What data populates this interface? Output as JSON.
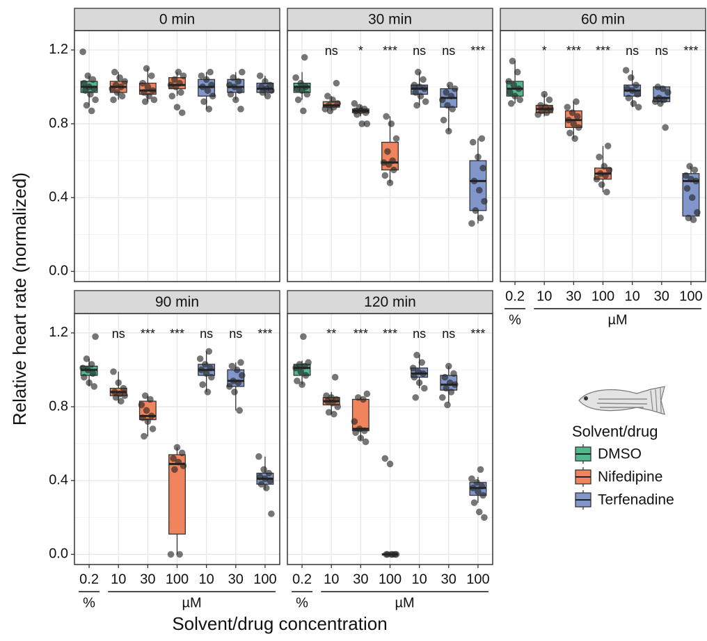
{
  "chart_data": {
    "type": "box",
    "y_label": "Relative heart rate (normalized)",
    "x_label": "Solvent/drug concentration",
    "legend_title": "Solvent/drug",
    "ylim": [
      -0.055,
      1.305
    ],
    "yticks": [
      {
        "value": 0,
        "label": "0.0"
      },
      0.4,
      0.8,
      1.2
    ],
    "minor_yticks": [
      0.2,
      0.6,
      1.0
    ],
    "grid": true,
    "categories": [
      "0.2",
      "10",
      "30",
      "100",
      "10",
      "30",
      "100"
    ],
    "x_groups": [
      {
        "label": "%",
        "categories": [
          0
        ]
      },
      {
        "label": "µM",
        "categories": [
          1,
          2,
          3,
          4,
          5,
          6
        ]
      }
    ],
    "series": [
      {
        "name": "DMSO",
        "color": "#52b98f",
        "categories": [
          0
        ]
      },
      {
        "name": "Nifedipine",
        "color": "#f0845c",
        "categories": [
          1,
          2,
          3
        ]
      },
      {
        "name": "Terfenadine",
        "color": "#8197cb",
        "categories": [
          4,
          5,
          6
        ]
      }
    ],
    "panels": [
      {
        "title": "0 min",
        "significance": [
          null,
          null,
          null,
          null,
          null,
          null,
          null
        ],
        "boxes": [
          {
            "whisker_low": 0.9,
            "q1": 0.97,
            "median": 1.0,
            "q3": 1.03,
            "whisker_high": 1.06,
            "points": [
              1.19,
              1.06,
              1.04,
              1.02,
              1.0,
              0.99,
              0.98,
              0.96,
              0.93,
              0.9,
              0.87
            ]
          },
          {
            "whisker_low": 0.93,
            "q1": 0.97,
            "median": 1.0,
            "q3": 1.03,
            "whisker_high": 1.08,
            "points": [
              1.08,
              1.05,
              1.03,
              1.01,
              1.0,
              0.99,
              0.97,
              0.95,
              0.93
            ]
          },
          {
            "whisker_low": 0.92,
            "q1": 0.96,
            "median": 0.98,
            "q3": 1.02,
            "whisker_high": 1.1,
            "points": [
              1.1,
              1.06,
              1.02,
              1.0,
              0.98,
              0.97,
              0.95,
              0.93,
              0.92
            ]
          },
          {
            "whisker_low": 0.95,
            "q1": 0.99,
            "median": 1.01,
            "q3": 1.05,
            "whisker_high": 1.08,
            "points": [
              1.08,
              1.06,
              1.04,
              1.02,
              1.01,
              1.0,
              0.97,
              0.95,
              0.89,
              0.86
            ]
          },
          {
            "whisker_low": 0.88,
            "q1": 0.95,
            "median": 1.0,
            "q3": 1.04,
            "whisker_high": 1.08,
            "points": [
              1.08,
              1.06,
              1.04,
              1.01,
              1.0,
              0.98,
              0.95,
              0.92,
              0.88
            ]
          },
          {
            "whisker_low": 0.93,
            "q1": 0.97,
            "median": 1.0,
            "q3": 1.04,
            "whisker_high": 1.08,
            "points": [
              1.08,
              1.05,
              1.03,
              1.01,
              1.0,
              0.98,
              0.96,
              0.93,
              0.88
            ]
          },
          {
            "whisker_low": 0.95,
            "q1": 0.97,
            "median": 0.99,
            "q3": 1.02,
            "whisker_high": 1.06,
            "points": [
              1.06,
              1.03,
              1.01,
              1.0,
              0.99,
              0.98,
              0.97,
              0.95
            ]
          }
        ]
      },
      {
        "title": "30 min",
        "significance": [
          null,
          "ns",
          "*",
          "***",
          "ns",
          "ns",
          "***"
        ],
        "boxes": [
          {
            "whisker_low": 0.93,
            "q1": 0.97,
            "median": 1.0,
            "q3": 1.02,
            "whisker_high": 1.08,
            "points": [
              1.16,
              1.05,
              1.02,
              1.0,
              0.99,
              0.98,
              0.96,
              0.93,
              0.87
            ]
          },
          {
            "whisker_low": 0.87,
            "q1": 0.89,
            "median": 0.9,
            "q3": 0.92,
            "whisker_high": 0.95,
            "points": [
              1.02,
              0.95,
              0.93,
              0.91,
              0.9,
              0.89,
              0.88,
              0.87
            ]
          },
          {
            "whisker_low": 0.84,
            "q1": 0.86,
            "median": 0.87,
            "q3": 0.88,
            "whisker_high": 0.9,
            "points": [
              0.91,
              0.89,
              0.88,
              0.87,
              0.87,
              0.86,
              0.85,
              0.8,
              0.8
            ]
          },
          {
            "whisker_low": 0.48,
            "q1": 0.55,
            "median": 0.59,
            "q3": 0.7,
            "whisker_high": 0.84,
            "points": [
              0.84,
              0.8,
              0.72,
              0.65,
              0.6,
              0.59,
              0.58,
              0.55,
              0.52,
              0.48
            ]
          },
          {
            "whisker_low": 0.9,
            "q1": 0.96,
            "median": 0.99,
            "q3": 1.01,
            "whisker_high": 1.08,
            "points": [
              1.08,
              1.04,
              1.01,
              1.0,
              0.99,
              0.97,
              0.95,
              0.92,
              0.9
            ]
          },
          {
            "whisker_low": 0.76,
            "q1": 0.89,
            "median": 0.94,
            "q3": 0.99,
            "whisker_high": 1.01,
            "points": [
              1.01,
              0.99,
              0.97,
              0.95,
              0.93,
              0.9,
              0.88,
              0.82,
              0.76
            ]
          },
          {
            "whisker_low": 0.26,
            "q1": 0.33,
            "median": 0.49,
            "q3": 0.6,
            "whisker_high": 0.72,
            "points": [
              0.72,
              0.7,
              0.62,
              0.56,
              0.49,
              0.44,
              0.38,
              0.33,
              0.29,
              0.26
            ]
          }
        ]
      },
      {
        "title": "60 min",
        "significance": [
          null,
          "*",
          "***",
          "***",
          "ns",
          "ns",
          "***"
        ],
        "boxes": [
          {
            "whisker_low": 0.91,
            "q1": 0.95,
            "median": 0.99,
            "q3": 1.03,
            "whisker_high": 1.14,
            "points": [
              1.14,
              1.08,
              1.03,
              1.01,
              0.99,
              0.97,
              0.95,
              0.93,
              0.91
            ]
          },
          {
            "whisker_low": 0.84,
            "q1": 0.86,
            "median": 0.88,
            "q3": 0.9,
            "whisker_high": 0.96,
            "points": [
              0.96,
              0.93,
              0.9,
              0.89,
              0.88,
              0.87,
              0.86,
              0.85
            ]
          },
          {
            "whisker_low": 0.72,
            "q1": 0.78,
            "median": 0.82,
            "q3": 0.87,
            "whisker_high": 0.92,
            "points": [
              0.92,
              0.89,
              0.86,
              0.84,
              0.82,
              0.8,
              0.78,
              0.75,
              0.72
            ]
          },
          {
            "whisker_low": 0.43,
            "q1": 0.5,
            "median": 0.53,
            "q3": 0.56,
            "whisker_high": 0.68,
            "points": [
              0.68,
              0.62,
              0.57,
              0.55,
              0.53,
              0.52,
              0.5,
              0.47,
              0.43
            ]
          },
          {
            "whisker_low": 0.89,
            "q1": 0.95,
            "median": 0.98,
            "q3": 1.01,
            "whisker_high": 1.09,
            "points": [
              1.09,
              1.05,
              1.01,
              0.99,
              0.98,
              0.96,
              0.94,
              0.91,
              0.89
            ]
          },
          {
            "whisker_low": 0.91,
            "q1": 0.92,
            "median": 0.94,
            "q3": 1.0,
            "whisker_high": 1.0,
            "points": [
              1.0,
              0.99,
              0.97,
              0.94,
              0.93,
              0.92,
              0.91,
              0.78
            ]
          },
          {
            "whisker_low": 0.28,
            "q1": 0.3,
            "median": 0.49,
            "q3": 0.53,
            "whisker_high": 0.57,
            "points": [
              0.57,
              0.55,
              0.52,
              0.5,
              0.49,
              0.45,
              0.4,
              0.32,
              0.29,
              0.28
            ]
          }
        ]
      },
      {
        "title": "90 min",
        "significance": [
          null,
          "ns",
          "***",
          "***",
          "ns",
          "ns",
          "***"
        ],
        "boxes": [
          {
            "whisker_low": 0.91,
            "q1": 0.97,
            "median": 1.0,
            "q3": 1.02,
            "whisker_high": 1.06,
            "points": [
              1.18,
              1.06,
              1.03,
              1.01,
              1.0,
              0.98,
              0.96,
              0.93,
              0.91
            ]
          },
          {
            "whisker_low": 0.82,
            "q1": 0.86,
            "median": 0.88,
            "q3": 0.9,
            "whisker_high": 0.99,
            "points": [
              0.99,
              0.93,
              0.9,
              0.88,
              0.87,
              0.86,
              0.85,
              0.83
            ]
          },
          {
            "whisker_low": 0.64,
            "q1": 0.73,
            "median": 0.75,
            "q3": 0.83,
            "whisker_high": 0.86,
            "points": [
              0.86,
              0.84,
              0.81,
              0.78,
              0.75,
              0.74,
              0.72,
              0.68,
              0.64
            ]
          },
          {
            "whisker_low": 0,
            "q1": 0.11,
            "median": 0.49,
            "q3": 0.54,
            "whisker_high": 0.58,
            "points": [
              0.58,
              0.55,
              0.52,
              0.5,
              0.48,
              0.46,
              0,
              0
            ]
          },
          {
            "whisker_low": 0.88,
            "q1": 0.97,
            "median": 1.0,
            "q3": 1.03,
            "whisker_high": 1.1,
            "points": [
              1.1,
              1.06,
              1.03,
              1.01,
              1.0,
              0.98,
              0.96,
              0.92,
              0.88
            ]
          },
          {
            "whisker_low": 0.78,
            "q1": 0.91,
            "median": 0.94,
            "q3": 1.0,
            "whisker_high": 1.04,
            "points": [
              1.04,
              1.02,
              1.0,
              0.97,
              0.94,
              0.93,
              0.91,
              0.88,
              0.78
            ]
          },
          {
            "whisker_low": 0.35,
            "q1": 0.38,
            "median": 0.41,
            "q3": 0.44,
            "whisker_high": 0.53,
            "points": [
              0.53,
              0.46,
              0.44,
              0.42,
              0.41,
              0.4,
              0.38,
              0.36,
              0.22
            ]
          }
        ]
      },
      {
        "title": "120 min",
        "significance": [
          null,
          "**",
          "***",
          "***",
          "ns",
          "ns",
          "***"
        ],
        "boxes": [
          {
            "whisker_low": 0.92,
            "q1": 0.97,
            "median": 1.01,
            "q3": 1.03,
            "whisker_high": 1.05,
            "points": [
              1.18,
              1.04,
              1.03,
              1.02,
              1.01,
              0.99,
              0.97,
              0.94,
              0.92
            ]
          },
          {
            "whisker_low": 0.76,
            "q1": 0.81,
            "median": 0.83,
            "q3": 0.85,
            "whisker_high": 0.88,
            "points": [
              0.96,
              0.86,
              0.85,
              0.84,
              0.83,
              0.82,
              0.8,
              0.77,
              0.76
            ]
          },
          {
            "whisker_low": 0.62,
            "q1": 0.67,
            "median": 0.68,
            "q3": 0.84,
            "whisker_high": 0.85,
            "points": [
              0.87,
              0.85,
              0.84,
              0.72,
              0.68,
              0.67,
              0.66,
              0.63,
              0.61
            ]
          },
          {
            "whisker_low": 0,
            "q1": 0,
            "median": 0,
            "q3": 0,
            "whisker_high": 0,
            "points": [
              0.52,
              0.49,
              0,
              0,
              0,
              0,
              0,
              0
            ]
          },
          {
            "whisker_low": 0.9,
            "q1": 0.96,
            "median": 0.98,
            "q3": 1.01,
            "whisker_high": 1.08,
            "points": [
              1.08,
              1.04,
              1.01,
              0.99,
              0.98,
              0.96,
              0.93,
              0.9,
              0.85
            ]
          },
          {
            "whisker_low": 0.82,
            "q1": 0.89,
            "median": 0.92,
            "q3": 0.97,
            "whisker_high": 1.02,
            "points": [
              1.02,
              0.98,
              0.96,
              0.93,
              0.92,
              0.9,
              0.88,
              0.85,
              0.81
            ]
          },
          {
            "whisker_low": 0.28,
            "q1": 0.32,
            "median": 0.36,
            "q3": 0.39,
            "whisker_high": 0.42,
            "points": [
              0.46,
              0.41,
              0.39,
              0.37,
              0.36,
              0.34,
              0.32,
              0.28,
              0.23,
              0.2
            ]
          }
        ]
      }
    ]
  }
}
